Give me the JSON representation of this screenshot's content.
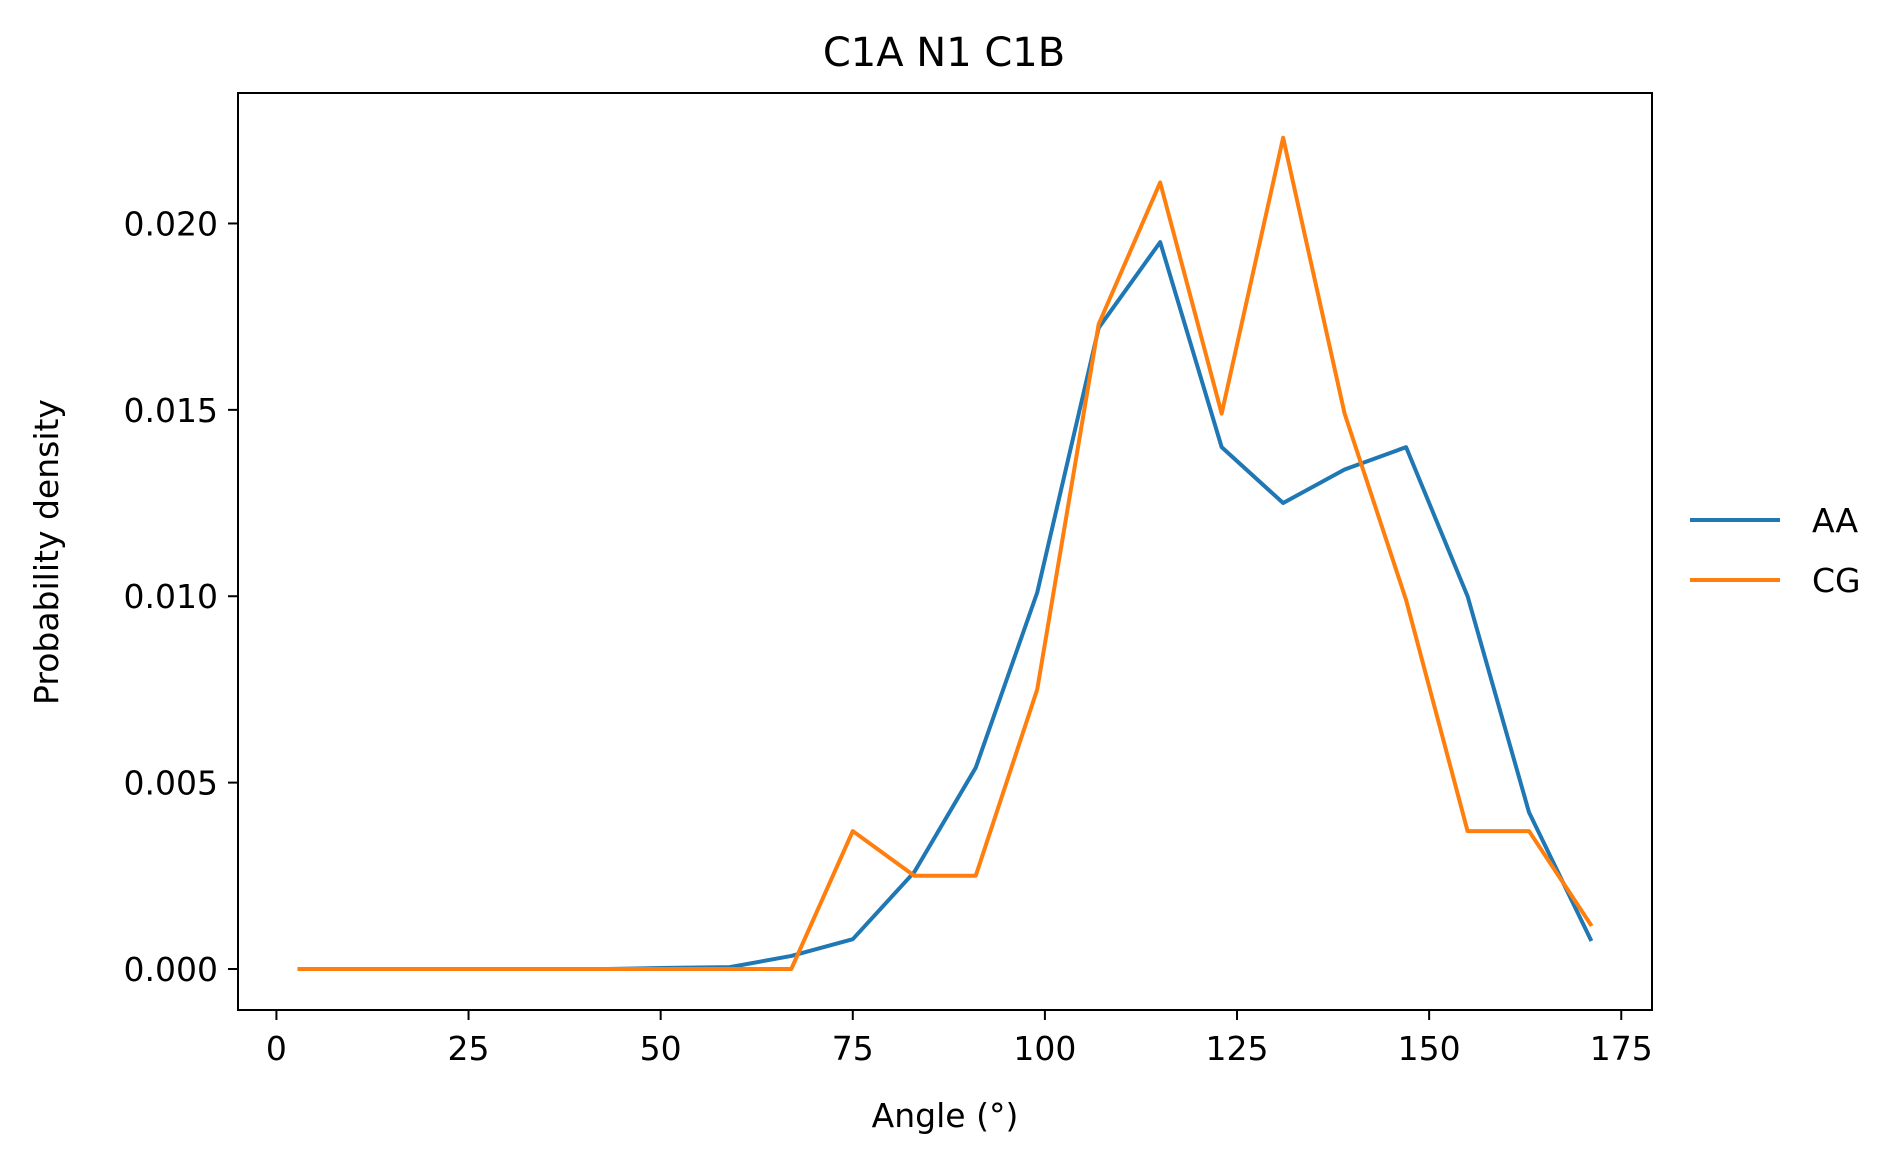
{
  "chart_data": {
    "type": "line",
    "title": "C1A N1 C1B",
    "xlabel": "Angle (°)",
    "ylabel": "Probability density",
    "xlim": [
      -5,
      179
    ],
    "ylim": [
      -0.0011,
      0.0235
    ],
    "xticks": [
      0,
      25,
      50,
      75,
      100,
      125,
      150,
      175
    ],
    "yticks": [
      0.0,
      0.005,
      0.01,
      0.015,
      0.02
    ],
    "ytick_labels": [
      "0.000",
      "0.005",
      "0.010",
      "0.015",
      "0.020"
    ],
    "grid": false,
    "legend_position": "right-center",
    "x": [
      3,
      11,
      19,
      27,
      35,
      43,
      51,
      59,
      67,
      75,
      83,
      91,
      99,
      107,
      115,
      123,
      131,
      139,
      147,
      155,
      163,
      171
    ],
    "series": [
      {
        "name": "AA",
        "color": "#1f77b4",
        "values": [
          0.0,
          0.0,
          0.0,
          0.0,
          0.0,
          0.0,
          3e-05,
          5e-05,
          0.00035,
          0.0008,
          0.0026,
          0.0054,
          0.0101,
          0.0172,
          0.0195,
          0.014,
          0.0125,
          0.0134,
          0.014,
          0.01,
          0.0042,
          0.0008
        ]
      },
      {
        "name": "CG",
        "color": "#ff7f0e",
        "values": [
          0.0,
          0.0,
          0.0,
          0.0,
          0.0,
          0.0,
          0.0,
          0.0,
          0.0,
          0.0037,
          0.0025,
          0.0025,
          0.0075,
          0.0173,
          0.0211,
          0.0149,
          0.0223,
          0.0149,
          0.0099,
          0.0037,
          0.0037,
          0.0012
        ]
      }
    ]
  }
}
